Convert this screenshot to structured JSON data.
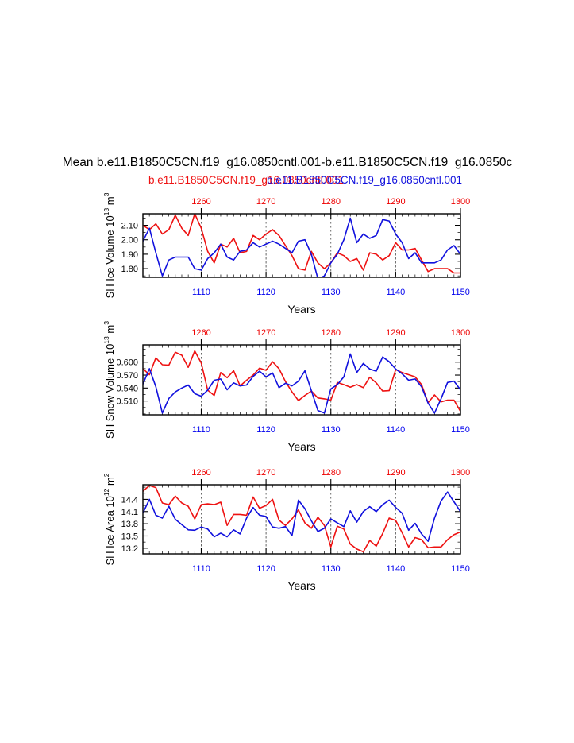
{
  "title": {
    "main": "Mean b.e11.B1850C5CN.f19_g16.0850cntl.001-b.e11.B1850C5CN.f19_g16.0850c",
    "left_case": "b.e11.B1850C5CN.f19_g16.0850cntl.001",
    "right_case": "b.e11.B1850C5CN.f19_g16.0850cntl.001"
  },
  "colors": {
    "red_series": "#ee1111",
    "blue_series": "#1111dd",
    "top_ticks": "#ee0000",
    "bottom_ticks": "#0000ee"
  },
  "chart_data": [
    {
      "type": "line",
      "xlabel": "Years",
      "ylabel": {
        "main": "SH Ice Volume 10",
        "exp": "13",
        "unit": " m",
        "unit_exp": "3"
      },
      "xlim": [
        1101,
        1150
      ],
      "x_ticks": [
        "1110",
        "1120",
        "1130",
        "1140",
        "1150"
      ],
      "top_x_ticks": [
        "1260",
        "1270",
        "1280",
        "1290",
        "1300"
      ],
      "ylim": [
        1.74,
        2.18
      ],
      "y_ticks": [
        {
          "value": 1.8,
          "label": "1.80"
        },
        {
          "value": 1.9,
          "label": "1.90"
        },
        {
          "value": 2.0,
          "label": "2.00"
        },
        {
          "value": 2.1,
          "label": "2.10"
        }
      ],
      "grid_x": [
        1110,
        1120,
        1130,
        1140
      ],
      "series": [
        {
          "color": "#ee1111",
          "x": [
            1101,
            1102,
            1103,
            1104,
            1105,
            1106,
            1107,
            1108,
            1109,
            1110,
            1111,
            1112,
            1113,
            1114,
            1115,
            1116,
            1117,
            1118,
            1119,
            1120,
            1121,
            1122,
            1123,
            1124,
            1125,
            1126,
            1127,
            1128,
            1129,
            1130,
            1131,
            1132,
            1133,
            1134,
            1135,
            1136,
            1137,
            1138,
            1139,
            1140,
            1141,
            1142,
            1143,
            1144,
            1145,
            1146,
            1147,
            1148,
            1149,
            1150
          ],
          "values": [
            2.1,
            2.07,
            2.11,
            2.04,
            2.07,
            2.17,
            2.08,
            2.03,
            2.18,
            2.08,
            1.92,
            1.84,
            1.97,
            1.95,
            2.01,
            1.91,
            1.92,
            2.03,
            2.0,
            2.04,
            2.07,
            2.03,
            1.96,
            1.89,
            1.8,
            1.79,
            1.92,
            1.84,
            1.8,
            1.84,
            1.91,
            1.89,
            1.85,
            1.87,
            1.79,
            1.91,
            1.9,
            1.86,
            1.89,
            1.98,
            1.93,
            1.93,
            1.94,
            1.86,
            1.78,
            1.8,
            1.8,
            1.8,
            1.77,
            1.77
          ]
        },
        {
          "color": "#1111dd",
          "x": [
            1101,
            1102,
            1103,
            1104,
            1105,
            1106,
            1107,
            1108,
            1109,
            1110,
            1111,
            1112,
            1113,
            1114,
            1115,
            1116,
            1117,
            1118,
            1119,
            1120,
            1121,
            1122,
            1123,
            1124,
            1125,
            1126,
            1127,
            1128,
            1129,
            1130,
            1131,
            1132,
            1133,
            1134,
            1135,
            1136,
            1137,
            1138,
            1139,
            1140,
            1141,
            1142,
            1143,
            1144,
            1145,
            1146,
            1147,
            1148,
            1149,
            1150
          ],
          "values": [
            1.99,
            2.08,
            1.91,
            1.75,
            1.86,
            1.88,
            1.88,
            1.88,
            1.8,
            1.79,
            1.87,
            1.91,
            1.97,
            1.88,
            1.86,
            1.92,
            1.93,
            1.98,
            1.95,
            1.97,
            1.99,
            1.97,
            1.94,
            1.91,
            1.99,
            2.0,
            1.9,
            1.73,
            1.75,
            1.84,
            1.9,
            2.0,
            2.15,
            1.98,
            2.04,
            2.01,
            2.03,
            2.14,
            2.13,
            2.04,
            1.98,
            1.87,
            1.91,
            1.84,
            1.84,
            1.84,
            1.86,
            1.93,
            1.96,
            1.9
          ]
        }
      ]
    },
    {
      "type": "line",
      "xlabel": "Years",
      "ylabel": {
        "main": "SH Snow Volume 10",
        "exp": "13",
        "unit": " m",
        "unit_exp": "3"
      },
      "xlim": [
        1101,
        1150
      ],
      "x_ticks": [
        "1110",
        "1120",
        "1130",
        "1140",
        "1150"
      ],
      "top_x_ticks": [
        "1260",
        "1270",
        "1280",
        "1290",
        "1300"
      ],
      "ylim": [
        0.478,
        0.64
      ],
      "y_ticks": [
        {
          "value": 0.51,
          "label": "0.510"
        },
        {
          "value": 0.54,
          "label": "0.540"
        },
        {
          "value": 0.57,
          "label": "0.570"
        },
        {
          "value": 0.6,
          "label": "0.600"
        }
      ],
      "grid_x": [
        1110,
        1120,
        1130,
        1140
      ],
      "series": [
        {
          "color": "#ee1111",
          "x": [
            1101,
            1102,
            1103,
            1104,
            1105,
            1106,
            1107,
            1108,
            1109,
            1110,
            1111,
            1112,
            1113,
            1114,
            1115,
            1116,
            1117,
            1118,
            1119,
            1120,
            1121,
            1122,
            1123,
            1124,
            1125,
            1126,
            1127,
            1128,
            1129,
            1130,
            1131,
            1132,
            1133,
            1134,
            1135,
            1136,
            1137,
            1138,
            1139,
            1140,
            1141,
            1142,
            1143,
            1144,
            1145,
            1146,
            1147,
            1148,
            1149,
            1150
          ],
          "values": [
            0.585,
            0.571,
            0.61,
            0.594,
            0.593,
            0.623,
            0.616,
            0.588,
            0.626,
            0.598,
            0.535,
            0.523,
            0.576,
            0.564,
            0.58,
            0.545,
            0.558,
            0.57,
            0.586,
            0.581,
            0.601,
            0.585,
            0.555,
            0.531,
            0.511,
            0.523,
            0.533,
            0.517,
            0.515,
            0.512,
            0.553,
            0.548,
            0.542,
            0.548,
            0.541,
            0.565,
            0.552,
            0.533,
            0.534,
            0.583,
            0.576,
            0.571,
            0.566,
            0.548,
            0.506,
            0.524,
            0.508,
            0.512,
            0.512,
            0.486
          ]
        },
        {
          "color": "#1111dd",
          "x": [
            1101,
            1102,
            1103,
            1104,
            1105,
            1106,
            1107,
            1108,
            1109,
            1110,
            1111,
            1112,
            1113,
            1114,
            1115,
            1116,
            1117,
            1118,
            1119,
            1120,
            1121,
            1122,
            1123,
            1124,
            1125,
            1126,
            1127,
            1128,
            1129,
            1130,
            1131,
            1132,
            1133,
            1134,
            1135,
            1136,
            1137,
            1138,
            1139,
            1140,
            1141,
            1142,
            1143,
            1144,
            1145,
            1146,
            1147,
            1148,
            1149,
            1150
          ],
          "values": [
            0.549,
            0.585,
            0.543,
            0.482,
            0.516,
            0.531,
            0.54,
            0.547,
            0.527,
            0.521,
            0.535,
            0.558,
            0.561,
            0.536,
            0.552,
            0.545,
            0.547,
            0.567,
            0.579,
            0.566,
            0.575,
            0.541,
            0.551,
            0.545,
            0.556,
            0.58,
            0.534,
            0.488,
            0.482,
            0.538,
            0.548,
            0.566,
            0.619,
            0.576,
            0.597,
            0.584,
            0.579,
            0.612,
            0.601,
            0.584,
            0.573,
            0.558,
            0.561,
            0.543,
            0.505,
            0.482,
            0.515,
            0.553,
            0.556,
            0.536
          ]
        }
      ]
    },
    {
      "type": "line",
      "xlabel": "Years",
      "ylabel": {
        "main": "SH Ice Area 10",
        "exp": "12",
        "unit": " m",
        "unit_exp": "2"
      },
      "xlim": [
        1101,
        1150
      ],
      "x_ticks": [
        "1110",
        "1120",
        "1130",
        "1140",
        "1150"
      ],
      "top_x_ticks": [
        "1260",
        "1270",
        "1280",
        "1290",
        "1300"
      ],
      "ylim": [
        13.06,
        14.76
      ],
      "y_ticks": [
        {
          "value": 13.2,
          "label": "13.2"
        },
        {
          "value": 13.5,
          "label": "13.5"
        },
        {
          "value": 13.8,
          "label": "13.8"
        },
        {
          "value": 14.1,
          "label": "14.1"
        },
        {
          "value": 14.4,
          "label": "14.4"
        }
      ],
      "grid_x": [
        1110,
        1120,
        1130,
        1140
      ],
      "series": [
        {
          "color": "#ee1111",
          "x": [
            1101,
            1102,
            1103,
            1104,
            1105,
            1106,
            1107,
            1108,
            1109,
            1110,
            1111,
            1112,
            1113,
            1114,
            1115,
            1116,
            1117,
            1118,
            1119,
            1120,
            1121,
            1122,
            1123,
            1124,
            1125,
            1126,
            1127,
            1128,
            1129,
            1130,
            1131,
            1132,
            1133,
            1134,
            1135,
            1136,
            1137,
            1138,
            1139,
            1140,
            1141,
            1142,
            1143,
            1144,
            1145,
            1146,
            1147,
            1148,
            1149,
            1150
          ],
          "values": [
            14.6,
            14.74,
            14.69,
            14.31,
            14.27,
            14.48,
            14.31,
            14.23,
            13.92,
            14.27,
            14.29,
            14.27,
            14.33,
            13.76,
            14.03,
            14.03,
            14.01,
            14.46,
            14.18,
            14.25,
            14.4,
            13.89,
            13.76,
            13.92,
            14.14,
            13.82,
            13.69,
            13.96,
            13.76,
            13.23,
            13.74,
            13.67,
            13.3,
            13.18,
            13.11,
            13.39,
            13.25,
            13.56,
            13.94,
            13.88,
            13.58,
            13.23,
            13.46,
            13.41,
            13.21,
            13.23,
            13.23,
            13.41,
            13.53,
            13.6
          ]
        },
        {
          "color": "#1111dd",
          "x": [
            1101,
            1102,
            1103,
            1104,
            1105,
            1106,
            1107,
            1108,
            1109,
            1110,
            1111,
            1112,
            1113,
            1114,
            1115,
            1116,
            1117,
            1118,
            1119,
            1120,
            1121,
            1122,
            1123,
            1124,
            1125,
            1126,
            1127,
            1128,
            1129,
            1130,
            1131,
            1132,
            1133,
            1134,
            1135,
            1136,
            1137,
            1138,
            1139,
            1140,
            1141,
            1142,
            1143,
            1144,
            1145,
            1146,
            1147,
            1148,
            1149,
            1150
          ],
          "values": [
            14.06,
            14.4,
            14.01,
            13.94,
            14.23,
            13.91,
            13.78,
            13.65,
            13.64,
            13.72,
            13.67,
            13.48,
            13.57,
            13.48,
            13.65,
            13.55,
            13.94,
            14.2,
            14.01,
            13.98,
            13.72,
            13.69,
            13.73,
            13.51,
            14.38,
            14.17,
            13.87,
            13.61,
            13.69,
            13.92,
            13.82,
            13.73,
            14.12,
            13.84,
            14.1,
            14.22,
            14.1,
            14.27,
            14.38,
            14.2,
            14.06,
            13.64,
            13.81,
            13.55,
            13.37,
            13.94,
            14.36,
            14.58,
            14.34,
            14.1
          ]
        }
      ]
    }
  ]
}
